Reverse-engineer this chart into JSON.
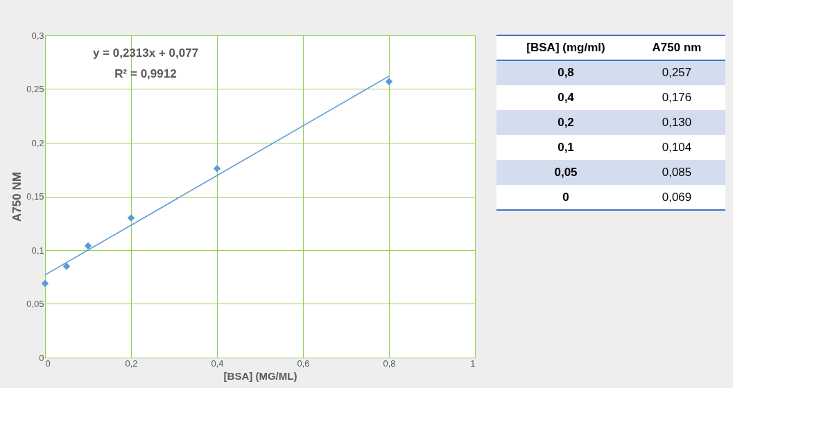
{
  "chart_data": [
    {
      "type": "scatter",
      "xlabel": "[BSA] (MG/ML)",
      "ylabel": "A750 NM",
      "annotations": [
        "y = 0,2313x + 0,077",
        "R² = 0,9912"
      ],
      "xlim": [
        0,
        1
      ],
      "ylim": [
        0,
        0.3
      ],
      "xticks": [
        {
          "value": 0,
          "label": "0"
        },
        {
          "value": 0.2,
          "label": "0,2"
        },
        {
          "value": 0.4,
          "label": "0,4"
        },
        {
          "value": 0.6,
          "label": "0,6"
        },
        {
          "value": 0.8,
          "label": "0,8"
        },
        {
          "value": 1,
          "label": "1"
        }
      ],
      "yticks": [
        {
          "value": 0,
          "label": "0"
        },
        {
          "value": 0.05,
          "label": "0,05"
        },
        {
          "value": 0.1,
          "label": "0,1"
        },
        {
          "value": 0.15,
          "label": "0,15"
        },
        {
          "value": 0.2,
          "label": "0,2"
        },
        {
          "value": 0.25,
          "label": "0,25"
        },
        {
          "value": 0.3,
          "label": "0,3"
        }
      ],
      "grid": true,
      "marker": "diamond",
      "series": [
        {
          "type": "scatter",
          "color": "#5b9bd5",
          "x": [
            0,
            0.05,
            0.1,
            0.2,
            0.4,
            0.8
          ],
          "values": [
            0.069,
            0.085,
            0.104,
            0.13,
            0.176,
            0.257
          ]
        },
        {
          "type": "line",
          "color": "#5b9bd5",
          "x": [
            0,
            0.8
          ],
          "values": [
            0.077,
            0.262
          ],
          "line_style": "solid",
          "marker": "none"
        }
      ]
    },
    {
      "type": "other",
      "annotations": [
        "[BSA] (mg/ml)",
        "A750 nm",
        "0,8",
        "0,257",
        "0,4",
        "0,176",
        "0,2",
        "0,130",
        "0,1",
        "0,104",
        "0,05",
        "0,085",
        "0",
        "0,069"
      ]
    }
  ]
}
